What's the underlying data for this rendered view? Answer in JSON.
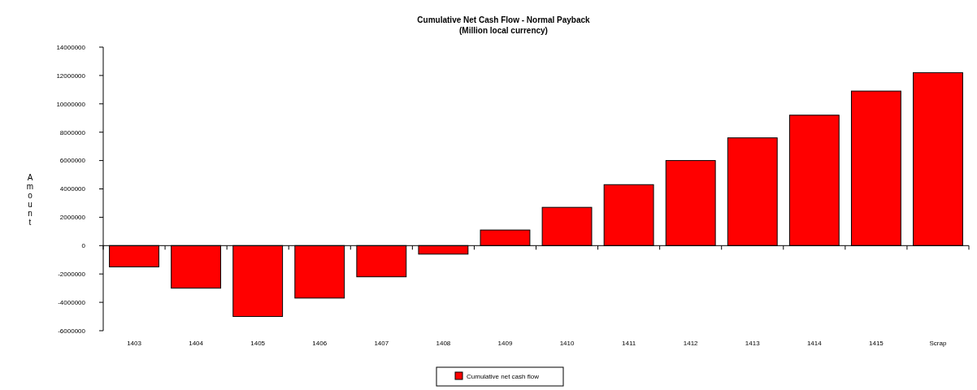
{
  "chart_data": {
    "type": "bar",
    "title": "Cumulative Net Cash Flow - Normal Payback",
    "subtitle": "(Million local currency)",
    "ylabel": "Amount",
    "categories": [
      "1403",
      "1404",
      "1405",
      "1406",
      "1407",
      "1408",
      "1409",
      "1410",
      "1411",
      "1412",
      "1413",
      "1414",
      "1415",
      "Scrap"
    ],
    "series": [
      {
        "name": "Cumulative net cash flow",
        "color": "#ff0000",
        "values": [
          -1500000,
          -3000000,
          -5000000,
          -3700000,
          -2200000,
          -600000,
          1100000,
          2700000,
          4300000,
          6000000,
          7600000,
          9200000,
          10900000,
          12200000
        ]
      }
    ],
    "ylim": [
      -6000000,
      14000000
    ],
    "yticks": [
      -6000000,
      -4000000,
      -2000000,
      0,
      2000000,
      4000000,
      6000000,
      8000000,
      10000000,
      12000000,
      14000000
    ],
    "legend": "bottom"
  }
}
